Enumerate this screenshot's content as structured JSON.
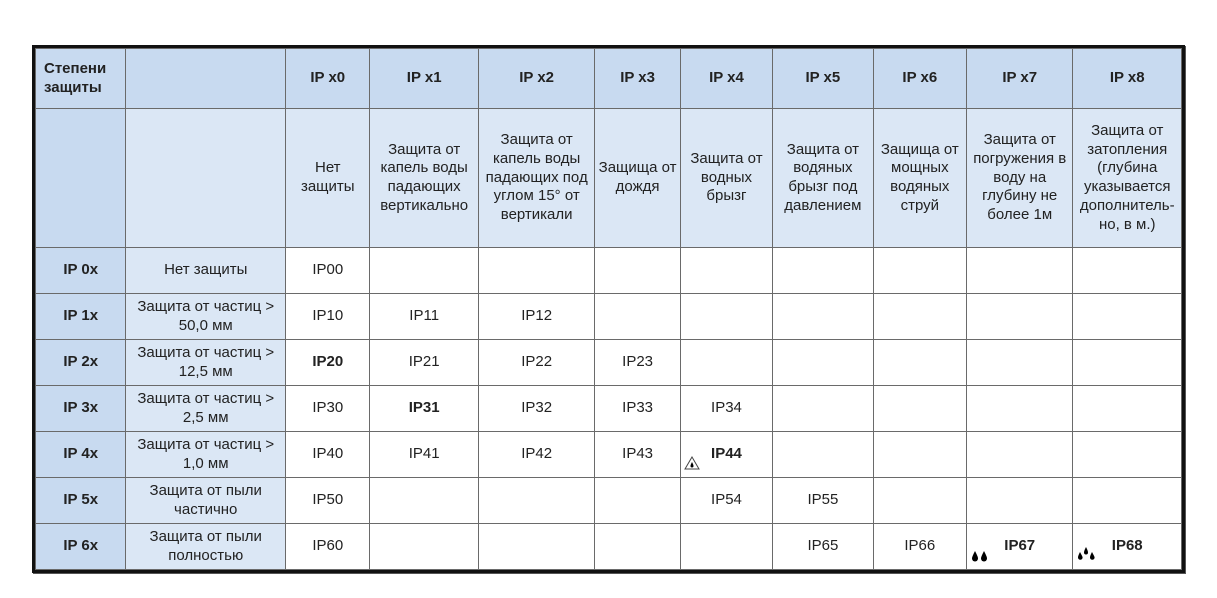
{
  "header": {
    "corner": "Степени защиты",
    "columns": [
      "IP x0",
      "IP x1",
      "IP x2",
      "IP x3",
      "IP x4",
      "IP x5",
      "IP x6",
      "IP x7",
      "IP x8"
    ],
    "descriptions": [
      "Нет защиты",
      "Защита от капель воды падающих вертикально",
      "Защита от капель воды падающих под углом 15° от вертикали",
      "Защища от дождя",
      "Защита от водных брызг",
      "Защита от водяных брызг под давлением",
      "Защища от мощных водяных струй",
      "Защита от погружения в воду на глубину не более 1м",
      "Защита от затопления (глубина указывается дополнитель-но, в м.)"
    ]
  },
  "rows": [
    {
      "label": "IP 0x",
      "desc": "Нет защиты",
      "cells": [
        "IP00",
        "",
        "",
        "",
        "",
        "",
        "",
        "",
        ""
      ]
    },
    {
      "label": "IP 1x",
      "desc": "Защита от частиц > 50,0 мм",
      "cells": [
        "IP10",
        "IP11",
        "IP12",
        "",
        "",
        "",
        "",
        "",
        ""
      ]
    },
    {
      "label": "IP 2x",
      "desc": "Защита от частиц > 12,5 мм",
      "cells": [
        "IP20",
        "IP21",
        "IP22",
        "IP23",
        "",
        "",
        "",
        "",
        ""
      ]
    },
    {
      "label": "IP 3x",
      "desc": "Защита от частиц > 2,5 мм",
      "cells": [
        "IP30",
        "IP31",
        "IP32",
        "IP33",
        "IP34",
        "",
        "",
        "",
        ""
      ]
    },
    {
      "label": "IP 4x",
      "desc": "Защита от частиц > 1,0 мм",
      "cells": [
        "IP40",
        "IP41",
        "IP42",
        "IP43",
        "IP44",
        "",
        "",
        "",
        ""
      ]
    },
    {
      "label": "IP 5x",
      "desc": "Защита от пыли частично",
      "cells": [
        "IP50",
        "",
        "",
        "",
        "IP54",
        "IP55",
        "",
        "",
        ""
      ]
    },
    {
      "label": "IP 6x",
      "desc": "Защита от пыли полностью",
      "cells": [
        "IP60",
        "",
        "",
        "",
        "",
        "IP65",
        "IP66",
        "IP67",
        "IP68"
      ]
    }
  ],
  "bold_cells": [
    "IP20",
    "IP31",
    "IP44",
    "IP67",
    "IP68"
  ],
  "icons": {
    "IP44": "warning-drop-triangle-icon",
    "IP67": "two-drops-icon",
    "IP68": "three-drops-icon"
  },
  "colors": {
    "header_bg": "#c8daf0",
    "desc_bg": "#dbe7f5",
    "border": "#111111"
  }
}
